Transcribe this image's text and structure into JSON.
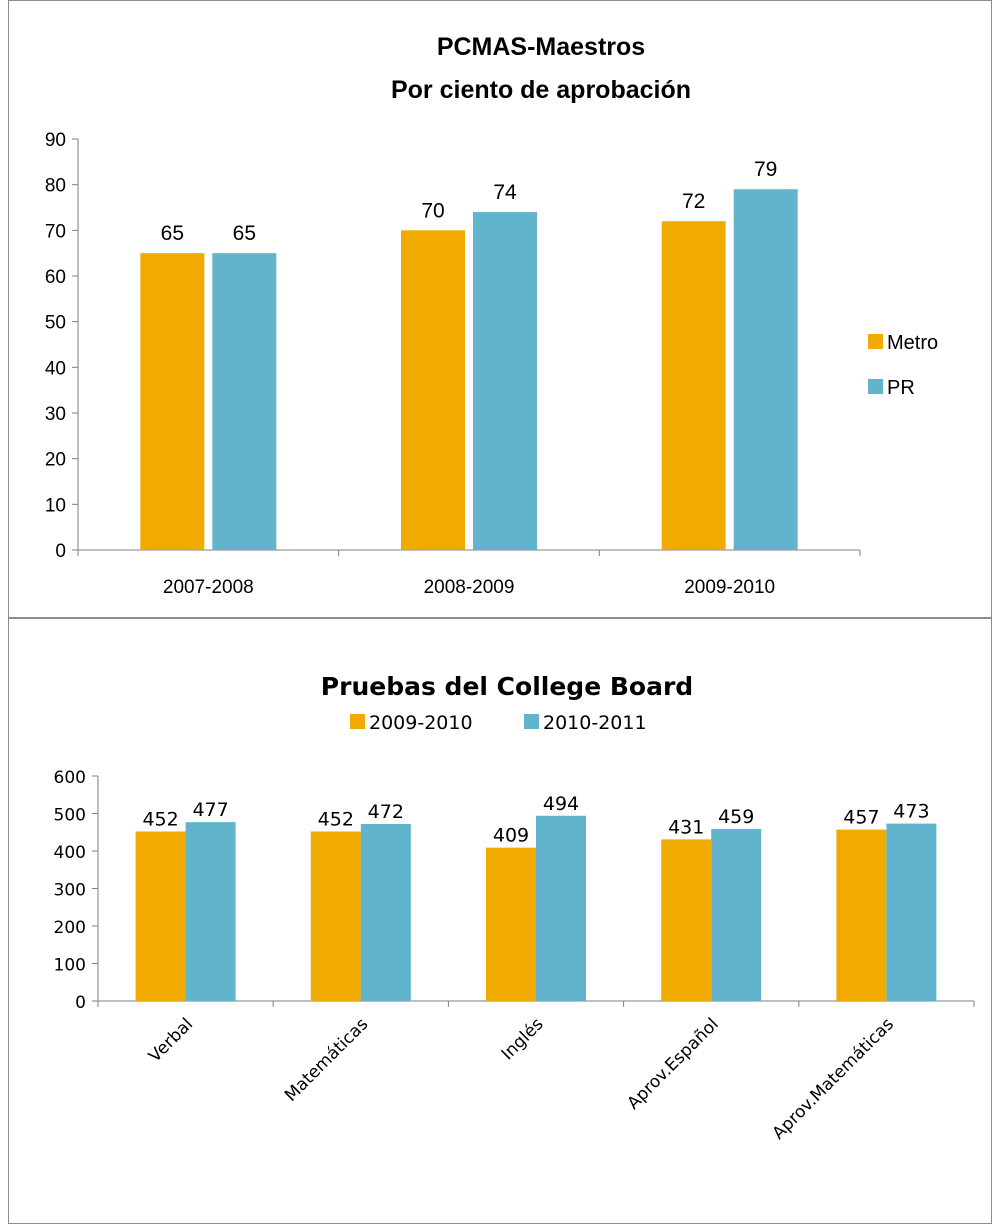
{
  "chart_data": [
    {
      "type": "bar",
      "title": "PCMAS-Maestros",
      "subtitle": "Por ciento de aprobación",
      "categories": [
        "2007-2008",
        "2008-2009",
        "2009-2010"
      ],
      "series": [
        {
          "name": "Metro",
          "values": [
            65,
            70,
            72
          ]
        },
        {
          "name": "PR",
          "values": [
            65,
            74,
            79
          ]
        }
      ],
      "ylim": [
        0,
        90
      ],
      "yticks": [
        "0",
        "10",
        "20",
        "30",
        "40",
        "50",
        "60",
        "70",
        "80",
        "90"
      ],
      "grid": false,
      "legend": "right",
      "colors": {
        "Metro": "#F0AA00",
        "PR": "#62B4CC"
      }
    },
    {
      "type": "bar",
      "title": "Pruebas del College Board",
      "categories": [
        "Verbal",
        "Matemáticas",
        "Inglés",
        "Aprov.Español",
        "Aprov.Matemáticas"
      ],
      "series": [
        {
          "name": "2009-2010",
          "values": [
            452,
            452,
            409,
            431,
            457
          ]
        },
        {
          "name": "2010-2011",
          "values": [
            477,
            472,
            494,
            459,
            473
          ]
        }
      ],
      "ylim": [
        0,
        600
      ],
      "yticks": [
        "0",
        "100",
        "200",
        "300",
        "400",
        "500",
        "600"
      ],
      "grid": false,
      "legend": "top",
      "colors": {
        "2009-2010": "#F0AA00",
        "2010-2011": "#62B4CC"
      }
    }
  ]
}
